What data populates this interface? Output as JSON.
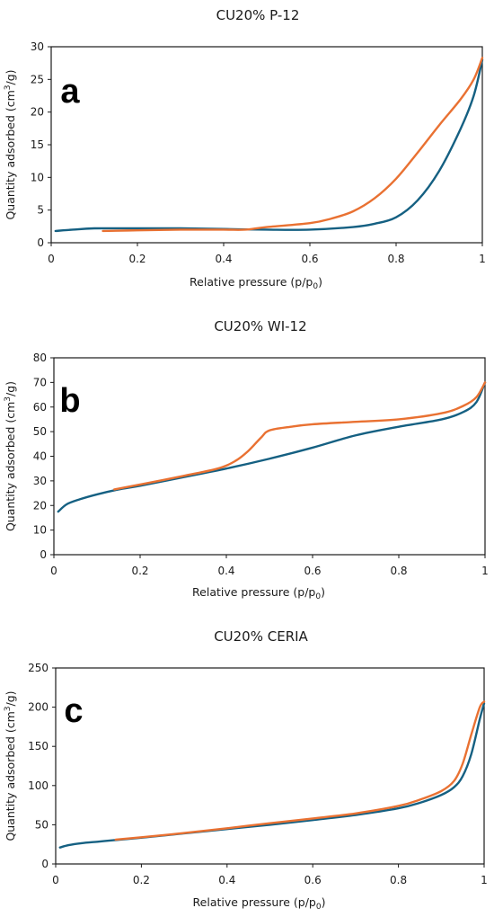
{
  "chart_data": [
    {
      "type": "line",
      "title": "CU20% P-12",
      "panel_label": "a",
      "xlabel": "Relative pressure (p/p",
      "xlabel_sub": "0",
      "xlabel_end": ")",
      "ylabel": "Quantity adsorbed (cm",
      "ylabel_sup": "3",
      "ylabel_end": "/g)",
      "xlim": [
        0,
        1
      ],
      "ylim": [
        0,
        30
      ],
      "xticks": [
        "0",
        "0.2",
        "0.4",
        "0.6",
        "0.8",
        "1"
      ],
      "yticks": [
        "0",
        "5",
        "10",
        "15",
        "20",
        "25",
        "30"
      ],
      "series": [
        {
          "color": "#156082",
          "x": [
            0.01,
            0.05,
            0.1,
            0.2,
            0.3,
            0.4,
            0.5,
            0.6,
            0.7,
            0.75,
            0.8,
            0.85,
            0.9,
            0.95,
            0.98,
            1.0
          ],
          "y": [
            1.8,
            2.0,
            2.2,
            2.2,
            2.2,
            2.1,
            2.0,
            2.0,
            2.4,
            2.9,
            3.9,
            6.5,
            11.0,
            17.5,
            22.5,
            28.0
          ]
        },
        {
          "color": "#E97132",
          "x": [
            0.12,
            0.2,
            0.3,
            0.4,
            0.45,
            0.5,
            0.6,
            0.65,
            0.7,
            0.75,
            0.8,
            0.85,
            0.9,
            0.95,
            0.98,
            1.0
          ],
          "y": [
            1.8,
            1.9,
            2.0,
            2.0,
            2.0,
            2.4,
            3.0,
            3.7,
            4.8,
            6.8,
            9.8,
            13.8,
            18.0,
            22.0,
            25.0,
            28.3
          ]
        }
      ]
    },
    {
      "type": "line",
      "title": "CU20% WI-12",
      "panel_label": "b",
      "xlabel": "Relative pressure (p/p",
      "xlabel_sub": "0",
      "xlabel_end": ")",
      "ylabel": "Quantity adsorbed (cm",
      "ylabel_sup": "3",
      "ylabel_end": "/g)",
      "xlim": [
        0,
        1
      ],
      "ylim": [
        0,
        80
      ],
      "xticks": [
        "0",
        "0.2",
        "0.4",
        "0.6",
        "0.8",
        "1"
      ],
      "yticks": [
        "0",
        "10",
        "20",
        "30",
        "40",
        "50",
        "60",
        "70",
        "80"
      ],
      "series": [
        {
          "color": "#156082",
          "x": [
            0.01,
            0.03,
            0.06,
            0.1,
            0.15,
            0.2,
            0.3,
            0.4,
            0.5,
            0.6,
            0.7,
            0.8,
            0.9,
            0.95,
            0.98,
            1.0
          ],
          "y": [
            17.5,
            20.5,
            22.5,
            24.5,
            26.5,
            28.0,
            31.5,
            35.0,
            39.0,
            43.5,
            48.5,
            52.0,
            55.0,
            58.0,
            62.0,
            70.0
          ]
        },
        {
          "color": "#E97132",
          "x": [
            0.14,
            0.2,
            0.3,
            0.38,
            0.42,
            0.45,
            0.48,
            0.5,
            0.55,
            0.6,
            0.7,
            0.8,
            0.9,
            0.95,
            0.98,
            1.0
          ],
          "y": [
            26.5,
            28.5,
            32.0,
            35.0,
            38.0,
            42.0,
            47.5,
            50.5,
            52.0,
            53.0,
            54.0,
            55.0,
            57.5,
            60.5,
            64.0,
            70.0
          ]
        }
      ]
    },
    {
      "type": "line",
      "title": "CU20% CERIA",
      "panel_label": "c",
      "xlabel": "Relative pressure (p/p",
      "xlabel_sub": "0",
      "xlabel_end": ")",
      "ylabel": "Quantity adsorbed (cm",
      "ylabel_sup": "3",
      "ylabel_end": "/g)",
      "xlim": [
        0,
        1
      ],
      "ylim": [
        0,
        250
      ],
      "xticks": [
        "0",
        "0.2",
        "0.4",
        "0.6",
        "0.8",
        "1"
      ],
      "yticks": [
        "0",
        "50",
        "100",
        "150",
        "200",
        "250"
      ],
      "series": [
        {
          "color": "#156082",
          "x": [
            0.01,
            0.03,
            0.06,
            0.1,
            0.14,
            0.2,
            0.3,
            0.4,
            0.5,
            0.6,
            0.7,
            0.8,
            0.85,
            0.9,
            0.93,
            0.95,
            0.97,
            0.99,
            1.0
          ],
          "y": [
            21.0,
            24.0,
            26.5,
            28.5,
            30.5,
            33.5,
            39.0,
            44.5,
            50.0,
            56.0,
            62.5,
            71.0,
            78.0,
            88.0,
            98.0,
            112.0,
            140.0,
            185.0,
            205.0
          ]
        },
        {
          "color": "#E97132",
          "x": [
            0.14,
            0.2,
            0.3,
            0.4,
            0.5,
            0.6,
            0.7,
            0.8,
            0.85,
            0.9,
            0.93,
            0.95,
            0.97,
            0.99,
            1.0
          ],
          "y": [
            31.0,
            34.0,
            39.5,
            45.5,
            52.0,
            58.0,
            64.5,
            74.0,
            82.0,
            93.0,
            106.0,
            128.0,
            165.0,
            200.0,
            207.0
          ]
        }
      ]
    }
  ]
}
